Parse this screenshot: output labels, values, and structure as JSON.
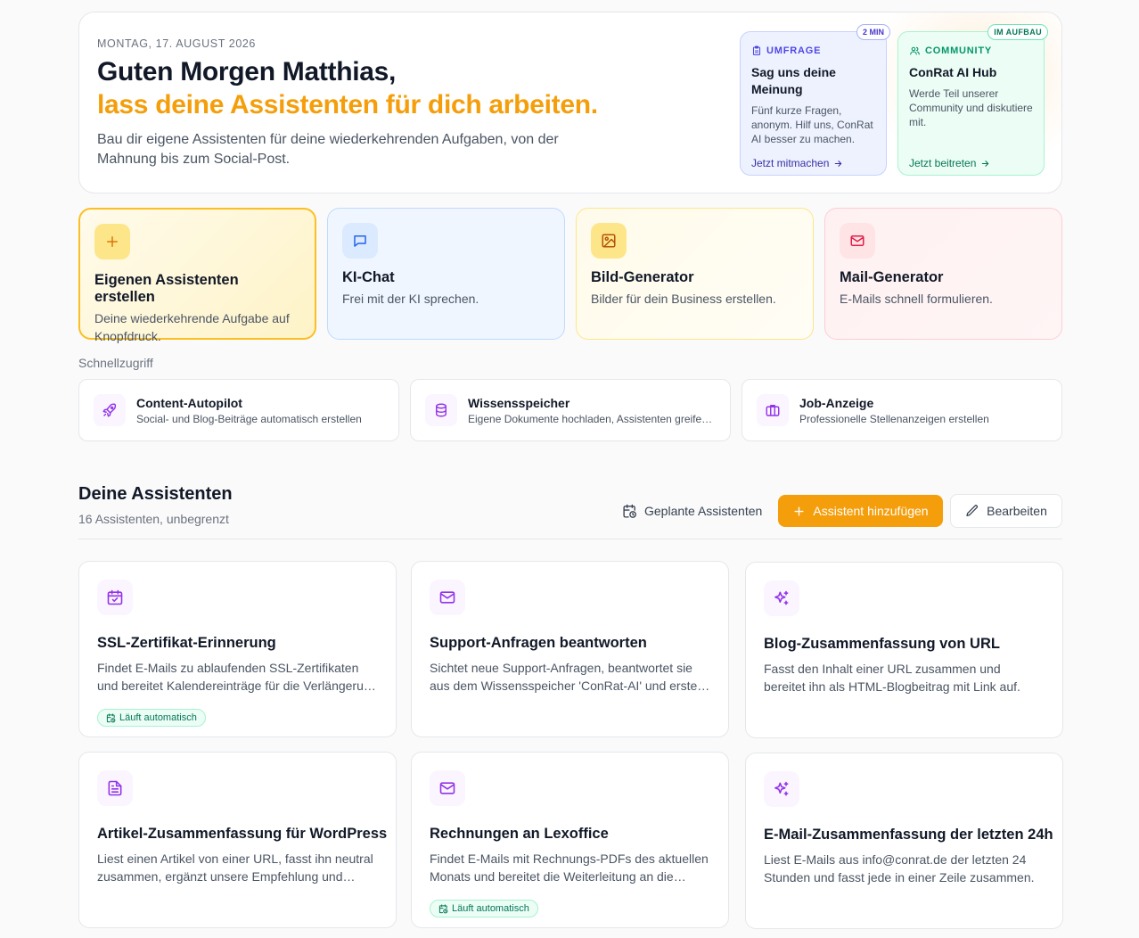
{
  "hero": {
    "date": "MONTAG, 17. AUGUST 2026",
    "greeting": "Guten Morgen Matthias,",
    "tagline": "lass deine Assistenten für dich arbeiten.",
    "description": "Bau dir eigene Assistenten für deine wiederkehrenden Aufgaben, von der Mahnung bis zum Social-Post."
  },
  "promos": {
    "survey": {
      "badge": "2 MIN",
      "tag": "UMFRAGE",
      "title": "Sag uns deine Meinung",
      "text": "Fünf kurze Fragen, anonym. Hilf uns, ConRat AI besser zu machen.",
      "link": "Jetzt mitmachen"
    },
    "community": {
      "badge": "IM AUFBAU",
      "tag": "COMMUNITY",
      "title": "ConRat AI Hub",
      "text": "Werde Teil unserer Community und diskutiere mit.",
      "link": "Jetzt beitreten"
    }
  },
  "features": [
    {
      "title": "Eigenen Assistenten erstellen",
      "text": "Deine wiederkehrende Aufgabe auf Knopfdruck."
    },
    {
      "title": "KI-Chat",
      "text": "Frei mit der KI sprechen."
    },
    {
      "title": "Bild-Generator",
      "text": "Bilder für dein Business erstellen."
    },
    {
      "title": "Mail-Generator",
      "text": "E-Mails schnell formulieren."
    }
  ],
  "quick_access": {
    "label": "Schnellzugriff",
    "items": [
      {
        "title": "Content-Autopilot",
        "text": "Social- und Blog-Beiträge automatisch erstellen"
      },
      {
        "title": "Wissensspeicher",
        "text": "Eigene Dokumente hochladen, Assistenten greifen darauf zu"
      },
      {
        "title": "Job-Anzeige",
        "text": "Professionelle Stellenanzeigen erstellen"
      }
    ]
  },
  "assistants": {
    "title": "Deine Assistenten",
    "subtitle": "16 Assistenten, unbegrenzt",
    "planned_label": "Geplante Assistenten",
    "add_label": "Assistent hinzufügen",
    "edit_label": "Bearbeiten",
    "auto_label": "Läuft automatisch",
    "cards": [
      {
        "title": "SSL-Zertifikat-Erinnerung",
        "text": "Findet E-Mails zu ablaufenden SSL-Zertifikaten und bereitet Kalendereinträge für die Verlängerung vor.",
        "icon": "calendar-check-icon"
      },
      {
        "title": "Support-Anfragen beantworten",
        "text": "Sichtet neue Support-Anfragen, beantwortet sie aus dem Wissensspeicher 'ConRat-AI' und erstellt Entwürfe.",
        "icon": "mail-icon"
      },
      {
        "title": "Blog-Zusammenfassung von URL",
        "text": "Fasst den Inhalt einer URL zusammen und bereitet ihn als HTML-Blogbeitrag mit Link auf.",
        "icon": "sparkles-icon"
      },
      {
        "title": "Artikel-Zusammenfassung für WordPress",
        "text": "Liest einen Artikel von einer URL, fasst ihn neutral zusammen, ergänzt unsere Empfehlung und veröffentlicht ihn.",
        "icon": "document-icon"
      },
      {
        "title": "Rechnungen an Lexoffice",
        "text": "Findet E-Mails mit Rechnungs-PDFs des aktuellen Monats und bereitet die Weiterleitung an die Buchhaltung vor.",
        "icon": "mail-icon"
      },
      {
        "title": "E-Mail-Zusammenfassung der letzten 24h",
        "text": "Liest E-Mails aus info@conrat.de der letzten 24 Stunden und fasst jede in einer Zeile zusammen.",
        "icon": "sparkles-icon"
      }
    ]
  },
  "colors": {
    "accent": "#f59e0b",
    "survey": "#4f46e5",
    "community": "#059669",
    "icon_purple": "#9333ea"
  }
}
